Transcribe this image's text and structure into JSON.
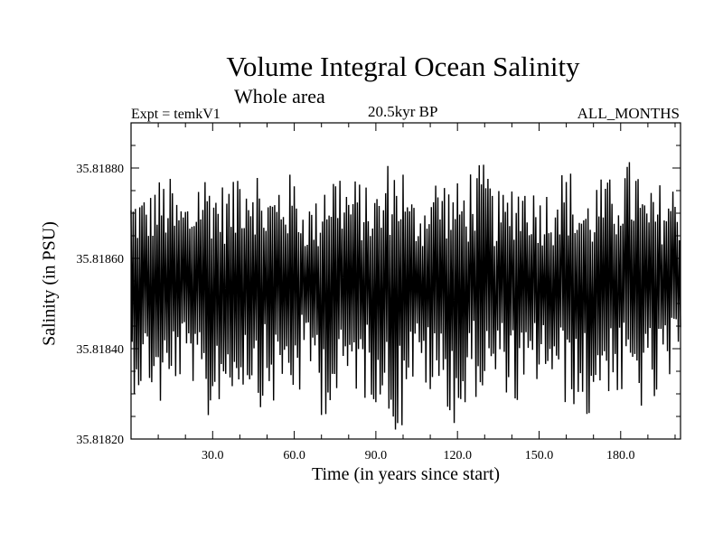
{
  "chart_data": {
    "type": "line",
    "title": "Volume Integral Ocean Salinity",
    "subtitle": "Whole area",
    "expt_label": "Expt = temkV1",
    "period_label": "20.5kyr BP",
    "months_label": "ALL_MONTHS",
    "xlabel": "Time (in years since start)",
    "ylabel": "Salinity (in PSU)",
    "xlim": [
      0.0,
      202.0
    ],
    "ylim": [
      35.8182,
      35.8189
    ],
    "xticks": [
      30.0,
      60.0,
      90.0,
      120.0,
      150.0,
      180.0
    ],
    "xtick_labels": [
      "30.0",
      "60.0",
      "90.0",
      "120.0",
      "150.0",
      "180.0"
    ],
    "yticks": [
      35.8182,
      35.8184,
      35.8186,
      35.8188
    ],
    "ytick_labels": [
      "35.81820",
      "35.81840",
      "35.81860",
      "35.81880"
    ],
    "series": [
      {
        "name": "Salinity",
        "mean": 35.818555,
        "peak_max_values": [
          35.81875,
          35.81878,
          35.81874,
          35.8188,
          35.81877,
          35.81883,
          35.81876,
          35.81879,
          35.81873,
          35.81881,
          35.81878,
          35.81876,
          35.81882,
          35.81874,
          35.81879,
          35.81877,
          35.81881,
          35.81875,
          35.81879,
          35.81876,
          35.8188,
          35.81874,
          35.81878,
          35.81882,
          35.81875,
          35.81877
        ],
        "trough_min_values": [
          35.8183,
          35.81826,
          35.81832,
          35.81822,
          35.81828,
          35.81831,
          35.81827,
          35.81829,
          35.81833,
          35.81825,
          35.8183,
          35.81828,
          35.81821,
          35.81831,
          35.81827,
          35.81822,
          35.81829,
          35.8183,
          35.81826,
          35.81832,
          35.81827,
          35.81823,
          35.8183,
          35.81828,
          35.81826,
          35.81831
        ],
        "samples_per_year": 2.5
      }
    ]
  }
}
